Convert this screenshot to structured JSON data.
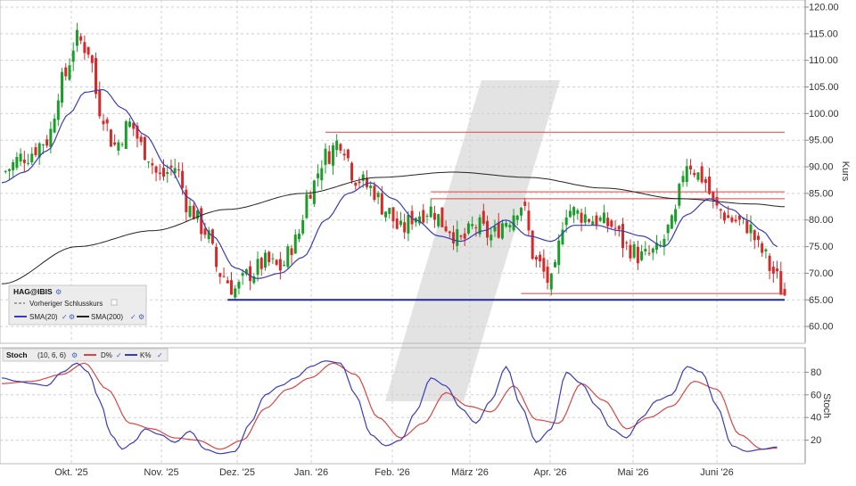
{
  "colors": {
    "up": "#1a9e2a",
    "down": "#d62a2a",
    "sma20": "#3b3bb8",
    "sma200": "#222222",
    "support": "#1f2a9a",
    "resistance": "#d94545",
    "stoch_d": "#d94545",
    "stoch_k": "#3b3bb8",
    "grid": "#d0d0d0",
    "watermark": "#e3e3e3"
  },
  "chart_data": [
    {
      "type": "candlestick",
      "title": "",
      "ylabel": "Kurs",
      "ylim": [
        57,
        121
      ],
      "y_ticks": [
        "120.00",
        "115.00",
        "110.00",
        "105.00",
        "100.00",
        "95.00",
        "90.00",
        "85.00",
        "80.00",
        "75.00",
        "70.00",
        "65.00",
        "60.00"
      ],
      "x_ticks": [
        "Okt. '25",
        "Nov. '25",
        "Dez. '25",
        "Jan. '26",
        "Feb. '26",
        "März '26",
        "Apr. '26",
        "Mai '26",
        "Juni '26"
      ],
      "grid": true,
      "legend_position": "bottom-left",
      "legend": {
        "symbol": "HAG@IBIS",
        "prev_close": "Vorheriger Schlusskurs",
        "sma20": "SMA(20)",
        "sma200": "SMA(200)"
      },
      "x_range": [
        0,
        208
      ],
      "close_anchors": [
        [
          0,
          89
        ],
        [
          6,
          92
        ],
        [
          12,
          95
        ],
        [
          16,
          106
        ],
        [
          20,
          114
        ],
        [
          23,
          112
        ],
        [
          26,
          101
        ],
        [
          30,
          94
        ],
        [
          34,
          98
        ],
        [
          38,
          93
        ],
        [
          42,
          88
        ],
        [
          46,
          90
        ],
        [
          50,
          82
        ],
        [
          54,
          78
        ],
        [
          58,
          70
        ],
        [
          62,
          67
        ],
        [
          66,
          70
        ],
        [
          70,
          72
        ],
        [
          74,
          71
        ],
        [
          78,
          76
        ],
        [
          82,
          86
        ],
        [
          86,
          92
        ],
        [
          90,
          95
        ],
        [
          94,
          88
        ],
        [
          98,
          86
        ],
        [
          102,
          82
        ],
        [
          106,
          78
        ],
        [
          110,
          81
        ],
        [
          114,
          82
        ],
        [
          118,
          79
        ],
        [
          122,
          76
        ],
        [
          126,
          79
        ],
        [
          130,
          77
        ],
        [
          134,
          80
        ],
        [
          138,
          83
        ],
        [
          142,
          72
        ],
        [
          146,
          68
        ],
        [
          150,
          82
        ],
        [
          154,
          81
        ],
        [
          158,
          80
        ],
        [
          162,
          79
        ],
        [
          166,
          75
        ],
        [
          170,
          73
        ],
        [
          174,
          74
        ],
        [
          178,
          79
        ],
        [
          182,
          91
        ],
        [
          186,
          88
        ],
        [
          190,
          82
        ],
        [
          194,
          80
        ],
        [
          198,
          79
        ],
        [
          202,
          74
        ],
        [
          205,
          70
        ],
        [
          208,
          66
        ]
      ],
      "sma20_anchors": [
        [
          0,
          87
        ],
        [
          6,
          89
        ],
        [
          12,
          93
        ],
        [
          18,
          100
        ],
        [
          22,
          104
        ],
        [
          27,
          104.5
        ],
        [
          32,
          101
        ],
        [
          38,
          96
        ],
        [
          44,
          90
        ],
        [
          50,
          84
        ],
        [
          56,
          77
        ],
        [
          62,
          71
        ],
        [
          68,
          69
        ],
        [
          74,
          70
        ],
        [
          80,
          73
        ],
        [
          86,
          80
        ],
        [
          92,
          85
        ],
        [
          98,
          87
        ],
        [
          104,
          84
        ],
        [
          110,
          80
        ],
        [
          116,
          77
        ],
        [
          122,
          76
        ],
        [
          128,
          78
        ],
        [
          134,
          80
        ],
        [
          140,
          77
        ],
        [
          146,
          76
        ],
        [
          152,
          79
        ],
        [
          158,
          79
        ],
        [
          164,
          78
        ],
        [
          170,
          77
        ],
        [
          176,
          75
        ],
        [
          182,
          81
        ],
        [
          188,
          84
        ],
        [
          194,
          82
        ],
        [
          198,
          80
        ],
        [
          202,
          78
        ],
        [
          206,
          75
        ]
      ],
      "sma200_anchors": [
        [
          0,
          68
        ],
        [
          20,
          75
        ],
        [
          40,
          78
        ],
        [
          60,
          82
        ],
        [
          80,
          85
        ],
        [
          100,
          88
        ],
        [
          120,
          89
        ],
        [
          140,
          88
        ],
        [
          160,
          86
        ],
        [
          180,
          84
        ],
        [
          200,
          83
        ],
        [
          208,
          82.5
        ]
      ],
      "resistance_lines": [
        {
          "y": 96.5,
          "x0": 86,
          "x1": 208
        },
        {
          "y": 85.3,
          "x0": 114,
          "x1": 208
        },
        {
          "y": 84.0,
          "x0": 114,
          "x1": 208
        },
        {
          "y": 66.2,
          "x0": 138,
          "x1": 208
        }
      ],
      "support_line": {
        "y": 65.0,
        "x0": 60,
        "x1": 208
      }
    },
    {
      "type": "line",
      "title": "",
      "ylabel": "Stoch",
      "ylim": [
        0,
        100
      ],
      "y_ticks": [
        "80",
        "60",
        "40",
        "20"
      ],
      "legend": {
        "name": "Stoch",
        "params": "(10, 6, 6)",
        "d": "D%",
        "k": "K%"
      },
      "k_anchors": [
        [
          0,
          75
        ],
        [
          4,
          72
        ],
        [
          8,
          70
        ],
        [
          12,
          68
        ],
        [
          16,
          80
        ],
        [
          20,
          88
        ],
        [
          23,
          80
        ],
        [
          26,
          55
        ],
        [
          29,
          25
        ],
        [
          32,
          12
        ],
        [
          35,
          18
        ],
        [
          38,
          30
        ],
        [
          42,
          25
        ],
        [
          46,
          18
        ],
        [
          50,
          28
        ],
        [
          54,
          12
        ],
        [
          58,
          8
        ],
        [
          62,
          10
        ],
        [
          66,
          35
        ],
        [
          70,
          60
        ],
        [
          74,
          68
        ],
        [
          78,
          75
        ],
        [
          82,
          85
        ],
        [
          86,
          90
        ],
        [
          90,
          88
        ],
        [
          94,
          60
        ],
        [
          98,
          25
        ],
        [
          102,
          15
        ],
        [
          106,
          20
        ],
        [
          110,
          45
        ],
        [
          114,
          75
        ],
        [
          118,
          68
        ],
        [
          122,
          48
        ],
        [
          126,
          35
        ],
        [
          130,
          55
        ],
        [
          134,
          85
        ],
        [
          138,
          50
        ],
        [
          142,
          18
        ],
        [
          146,
          30
        ],
        [
          150,
          80
        ],
        [
          154,
          70
        ],
        [
          158,
          50
        ],
        [
          162,
          30
        ],
        [
          166,
          22
        ],
        [
          170,
          40
        ],
        [
          174,
          55
        ],
        [
          178,
          60
        ],
        [
          182,
          85
        ],
        [
          186,
          80
        ],
        [
          190,
          50
        ],
        [
          194,
          15
        ],
        [
          198,
          10
        ],
        [
          202,
          12
        ],
        [
          206,
          14
        ]
      ],
      "d_anchors": [
        [
          0,
          70
        ],
        [
          8,
          72
        ],
        [
          16,
          78
        ],
        [
          22,
          88
        ],
        [
          28,
          65
        ],
        [
          34,
          35
        ],
        [
          40,
          30
        ],
        [
          46,
          22
        ],
        [
          52,
          20
        ],
        [
          58,
          12
        ],
        [
          64,
          20
        ],
        [
          70,
          48
        ],
        [
          76,
          65
        ],
        [
          82,
          75
        ],
        [
          88,
          88
        ],
        [
          94,
          78
        ],
        [
          100,
          40
        ],
        [
          106,
          22
        ],
        [
          112,
          35
        ],
        [
          118,
          62
        ],
        [
          124,
          50
        ],
        [
          130,
          45
        ],
        [
          136,
          68
        ],
        [
          142,
          38
        ],
        [
          148,
          35
        ],
        [
          154,
          70
        ],
        [
          160,
          55
        ],
        [
          166,
          30
        ],
        [
          172,
          40
        ],
        [
          178,
          50
        ],
        [
          184,
          72
        ],
        [
          190,
          65
        ],
        [
          196,
          25
        ],
        [
          202,
          12
        ],
        [
          206,
          13
        ]
      ]
    }
  ]
}
